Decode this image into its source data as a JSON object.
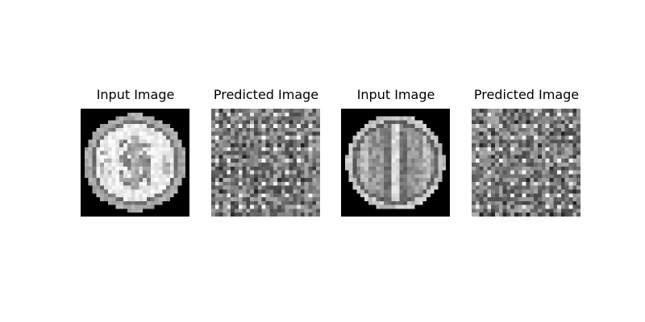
{
  "figure": {
    "panels": [
      {
        "title": "Input Image",
        "kind": "input-axial"
      },
      {
        "title": "Predicted Image",
        "kind": "predicted-noise"
      },
      {
        "title": "Input Image",
        "kind": "input-coronal"
      },
      {
        "title": "Predicted Image",
        "kind": "predicted-noise"
      }
    ],
    "colormap": "gray"
  }
}
